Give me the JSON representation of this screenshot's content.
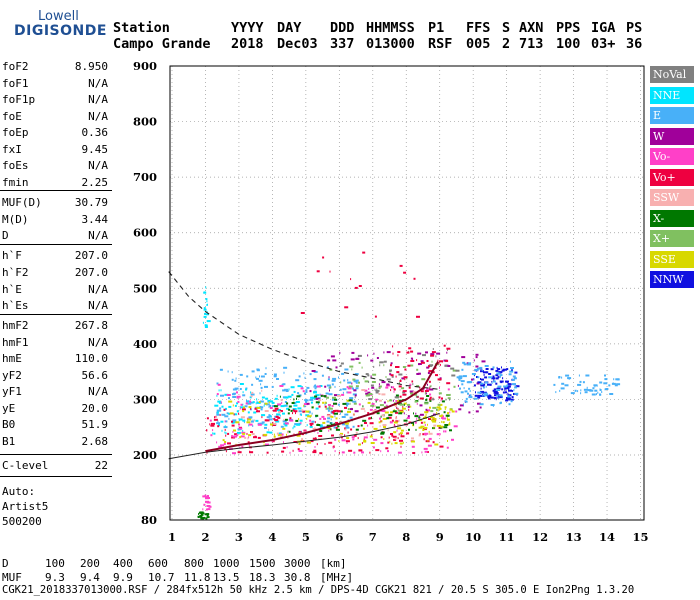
{
  "logo": {
    "line1": "Lowell",
    "line2": "DIGISONDE"
  },
  "header": {
    "labels": [
      "Station",
      "YYYY",
      "DAY",
      "DDD",
      "HHMMSS",
      "P1",
      "FFS",
      "S",
      "AXN",
      "PPS",
      "IGA",
      "PS"
    ],
    "values": [
      "Campo Grande",
      "2018",
      "Dec03",
      "337",
      "013000",
      "RSF",
      "005",
      "2",
      "713",
      "100",
      "03+",
      "36"
    ]
  },
  "params": [
    {
      "name": "foF2",
      "value": "8.950"
    },
    {
      "name": "foF1",
      "value": "N/A"
    },
    {
      "name": "foF1p",
      "value": "N/A"
    },
    {
      "name": "foE",
      "value": "N/A"
    },
    {
      "name": "foEp",
      "value": "0.36"
    },
    {
      "name": "fxI",
      "value": "9.45"
    },
    {
      "name": "foEs",
      "value": "N/A"
    },
    {
      "name": "fmin",
      "value": "2.25"
    },
    {
      "name": "MUF(D)",
      "value": "30.79"
    },
    {
      "name": "M(D)",
      "value": "3.44"
    },
    {
      "name": "D",
      "value": "N/A"
    },
    {
      "name": "h`F",
      "value": "207.0"
    },
    {
      "name": "h`F2",
      "value": "207.0"
    },
    {
      "name": "h`E",
      "value": "N/A"
    },
    {
      "name": "h`Es",
      "value": "N/A"
    },
    {
      "name": "hmF2",
      "value": "267.8"
    },
    {
      "name": "hmF1",
      "value": "N/A"
    },
    {
      "name": "hmE",
      "value": "110.0"
    },
    {
      "name": "yF2",
      "value": "56.6"
    },
    {
      "name": "yF1",
      "value": "N/A"
    },
    {
      "name": "yE",
      "value": "20.0"
    },
    {
      "name": "B0",
      "value": "51.9"
    },
    {
      "name": "B1",
      "value": "2.68"
    },
    {
      "name": "C-level",
      "value": "22"
    }
  ],
  "autoscale": {
    "line1": "Auto:",
    "line2": "Artist5",
    "line3": "500200"
  },
  "legend": [
    {
      "label": "NoVal",
      "color": "#808080"
    },
    {
      "label": "NNE",
      "color": "#00e5ff"
    },
    {
      "label": "E",
      "color": "#48b0f8"
    },
    {
      "label": "W",
      "color": "#a0009a"
    },
    {
      "label": "Vo-",
      "color": "#ff40c8"
    },
    {
      "label": "Vo+",
      "color": "#ee0040"
    },
    {
      "label": "SSW",
      "color": "#f8b0b0"
    },
    {
      "label": "X-",
      "color": "#007800"
    },
    {
      "label": "X+",
      "color": "#80c060"
    },
    {
      "label": "SSE",
      "color": "#d8d800"
    },
    {
      "label": "NNW",
      "color": "#1010e0"
    }
  ],
  "footer": {
    "d_row": [
      "D",
      "100",
      "200",
      "400",
      "600",
      "800",
      "1000",
      "1500",
      "3000",
      "[km]"
    ],
    "muf_row": [
      "MUF",
      "9.3",
      "9.4",
      "9.9",
      "10.7",
      "11.8",
      "13.5",
      "18.3",
      "30.8",
      "[MHz]"
    ],
    "file_line": "CGK21_2018337013000.RSF / 284fx512h 50 kHz 2.5 km / DPS-4D CGK21 821 / 20.5 S 305.0 E Ion2Png 1.3.20"
  },
  "chart_data": {
    "type": "scatter",
    "x_ticks": [
      "1",
      "2",
      "3",
      "4",
      "5",
      "6",
      "7",
      "8",
      "9",
      "10",
      "11",
      "12",
      "13",
      "14",
      "15"
    ],
    "y_ticks": [
      "80",
      "200",
      "300",
      "400",
      "500",
      "600",
      "700",
      "800",
      "900"
    ],
    "xlim": [
      1,
      15
    ],
    "ylim": [
      80,
      900
    ],
    "grid": "dotted",
    "legend_position": "right",
    "profile_curve": {
      "x": [
        2.0,
        3.0,
        4.0,
        5.0,
        6.0,
        7.0,
        8.0,
        8.5,
        8.95
      ],
      "y": [
        207,
        218,
        227,
        240,
        256,
        275,
        300,
        320,
        368
      ]
    },
    "ordinary_trace": {
      "x": [
        0.9,
        2.0,
        3.0,
        4.0,
        5.0,
        6.0,
        7.0,
        8.0,
        9.0
      ],
      "y": [
        193,
        205,
        212,
        218,
        225,
        232,
        242,
        255,
        275
      ]
    },
    "mufd_curve": {
      "x": [
        0.9,
        1.5,
        2.0,
        3.0,
        4.0,
        5.0,
        6.0,
        7.0,
        8.0,
        9.0
      ],
      "y": [
        530,
        485,
        458,
        417,
        390,
        368,
        350,
        338,
        325,
        318
      ]
    },
    "clusters": [
      {
        "color": "#48b0f8",
        "x": [
          2.3,
          6.5
        ],
        "y": [
          250,
          360
        ],
        "n": 220
      },
      {
        "color": "#00e5ff",
        "x": [
          2.2,
          5.5
        ],
        "y": [
          240,
          330
        ],
        "n": 110
      },
      {
        "color": "#ee0040",
        "x": [
          2.0,
          9.0
        ],
        "y": [
          205,
          290
        ],
        "n": 170
      },
      {
        "color": "#ff40c8",
        "x": [
          2.0,
          9.5
        ],
        "y": [
          205,
          330
        ],
        "n": 150
      },
      {
        "color": "#d8d800",
        "x": [
          2.5,
          9.3
        ],
        "y": [
          220,
          300
        ],
        "n": 110
      },
      {
        "color": "#007800",
        "x": [
          4.0,
          9.3
        ],
        "y": [
          240,
          310
        ],
        "n": 90
      },
      {
        "color": "#a0009a",
        "x": [
          5.0,
          10.3
        ],
        "y": [
          270,
          390
        ],
        "n": 100
      },
      {
        "color": "#1010e0",
        "x": [
          10.0,
          11.3
        ],
        "y": [
          300,
          360
        ],
        "n": 110
      },
      {
        "color": "#48b0f8",
        "x": [
          9.5,
          11.3
        ],
        "y": [
          290,
          370
        ],
        "n": 80
      },
      {
        "color": "#48b0f8",
        "x": [
          12.3,
          14.3
        ],
        "y": [
          310,
          345
        ],
        "n": 55
      },
      {
        "color": "#80c060",
        "x": [
          5.5,
          9.5
        ],
        "y": [
          280,
          370
        ],
        "n": 70
      },
      {
        "color": "#f8b0b0",
        "x": [
          3.0,
          9.0
        ],
        "y": [
          230,
          320
        ],
        "n": 60
      },
      {
        "color": "#808080",
        "x": [
          6.0,
          9.5
        ],
        "y": [
          300,
          400
        ],
        "n": 40
      },
      {
        "color": "#ee0040",
        "x": [
          7.5,
          9.2
        ],
        "y": [
          300,
          400
        ],
        "n": 60
      },
      {
        "color": "#d8d800",
        "x": [
          8.5,
          9.5
        ],
        "y": [
          250,
          290
        ],
        "n": 30
      },
      {
        "color": "#00e5ff",
        "x": [
          1.92,
          2.05
        ],
        "y": [
          430,
          510
        ],
        "n": 18
      },
      {
        "color": "#007800",
        "x": [
          1.75,
          2.05
        ],
        "y": [
          84,
          96
        ],
        "n": 20
      },
      {
        "color": "#ff40c8",
        "x": [
          1.9,
          2.1
        ],
        "y": [
          100,
          130
        ],
        "n": 14
      },
      {
        "color": "#ee0040",
        "x": [
          4.5,
          8.5
        ],
        "y": [
          450,
          590
        ],
        "n": 14
      }
    ]
  }
}
